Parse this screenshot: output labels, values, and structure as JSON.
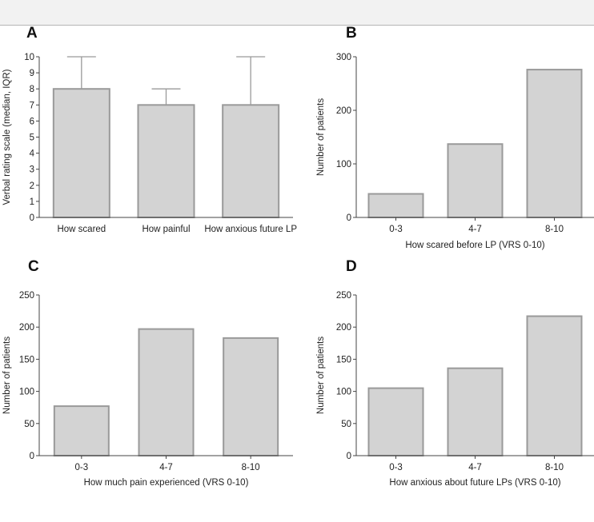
{
  "colors": {
    "bar_fill": "#d3d3d3",
    "bar_stroke": "#9a9a9a",
    "axis": "#444444",
    "error_bar": "#9a9a9a"
  },
  "chart_data": [
    {
      "id": "A",
      "type": "bar",
      "label": "A",
      "categories": [
        "How scared",
        "How painful",
        "How anxious future LP"
      ],
      "values": [
        8,
        7,
        7
      ],
      "error_upper": [
        10,
        8,
        10
      ],
      "ylabel": "Verbal rating scale (median, IQR)",
      "xlabel": "",
      "ylim": [
        0,
        10
      ],
      "yticks": [
        0,
        1,
        2,
        3,
        4,
        5,
        6,
        7,
        8,
        9,
        10
      ]
    },
    {
      "id": "B",
      "type": "bar",
      "label": "B",
      "categories": [
        "0-3",
        "4-7",
        "8-10"
      ],
      "values": [
        44,
        137,
        276
      ],
      "ylabel": "Number of patients",
      "xlabel": "How scared before LP (VRS 0-10)",
      "ylim": [
        0,
        300
      ],
      "yticks": [
        0,
        100,
        200,
        300
      ]
    },
    {
      "id": "C",
      "type": "bar",
      "label": "C",
      "categories": [
        "0-3",
        "4-7",
        "8-10"
      ],
      "values": [
        77,
        197,
        183
      ],
      "ylabel": "Number of patients",
      "xlabel": "How much pain experienced (VRS 0-10)",
      "ylim": [
        0,
        250
      ],
      "yticks": [
        0,
        50,
        100,
        150,
        200,
        250
      ]
    },
    {
      "id": "D",
      "type": "bar",
      "label": "D",
      "categories": [
        "0-3",
        "4-7",
        "8-10"
      ],
      "values": [
        105,
        136,
        217
      ],
      "ylabel": "Number of patients",
      "xlabel": "How anxious about future LPs (VRS 0-10)",
      "ylim": [
        0,
        250
      ],
      "yticks": [
        0,
        50,
        100,
        150,
        200,
        250
      ]
    }
  ]
}
